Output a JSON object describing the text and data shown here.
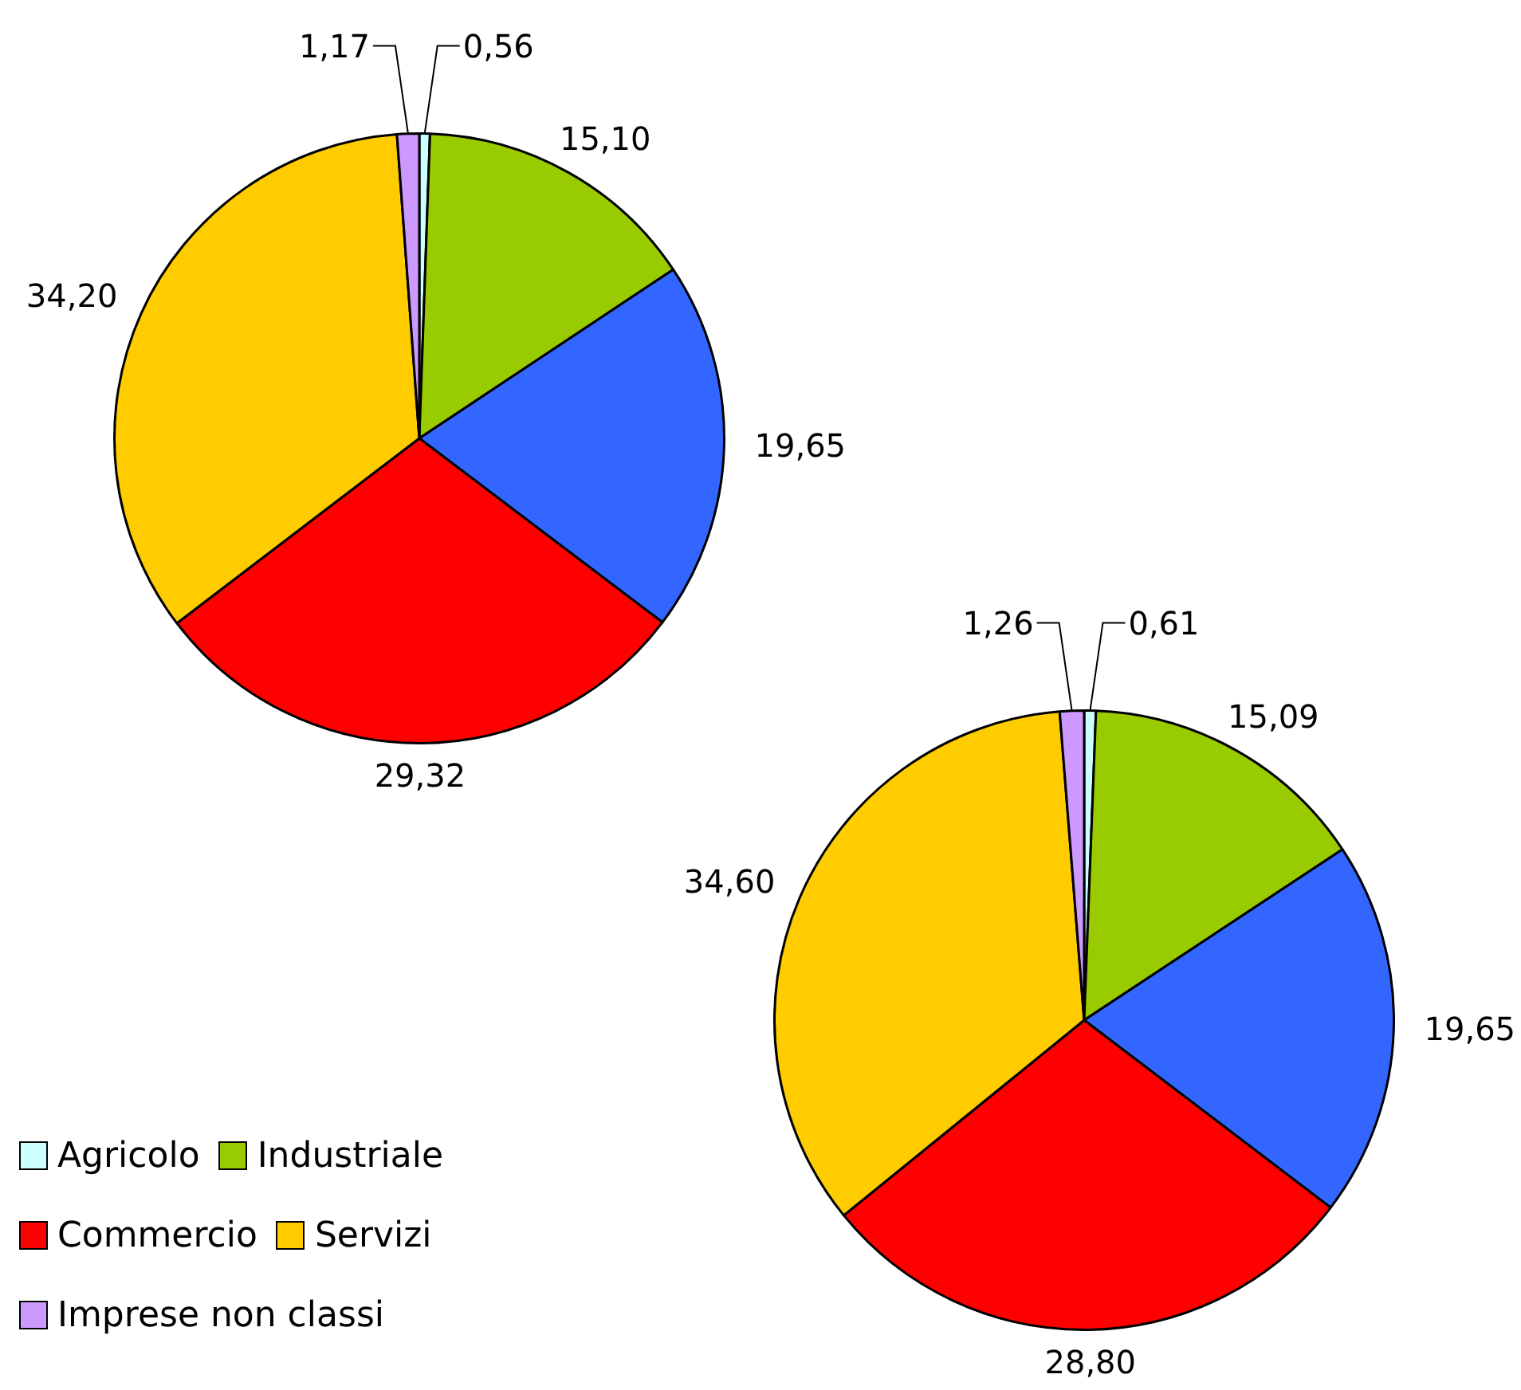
{
  "chart_data": [
    {
      "type": "pie",
      "categories": [
        null,
        null,
        null,
        null,
        null,
        null
      ],
      "values": [
        0.56,
        15.1,
        19.65,
        29.32,
        34.2,
        1.17
      ],
      "value_labels": [
        "0,56",
        "15,10",
        "19,65",
        "29,32",
        "34,20",
        "1,17"
      ],
      "colors": [
        "#ccffff",
        "#99cc00",
        "#3366ff",
        "#ff0000",
        "#ffcc00",
        "#cc99ff"
      ],
      "legend": false
    },
    {
      "type": "pie",
      "categories": [
        "Agricolo",
        "Industriale",
        null,
        "Commercio",
        "Servizi",
        "Imprese non classi"
      ],
      "values": [
        0.61,
        15.09,
        19.65,
        28.8,
        34.6,
        1.26
      ],
      "value_labels": [
        "0,61",
        "15,09",
        "19,65",
        "28,80",
        "34,60",
        "1,26"
      ],
      "colors": [
        "#ccffff",
        "#99cc00",
        "#3366ff",
        "#ff0000",
        "#ffcc00",
        "#cc99ff"
      ],
      "legend": "left"
    }
  ]
}
